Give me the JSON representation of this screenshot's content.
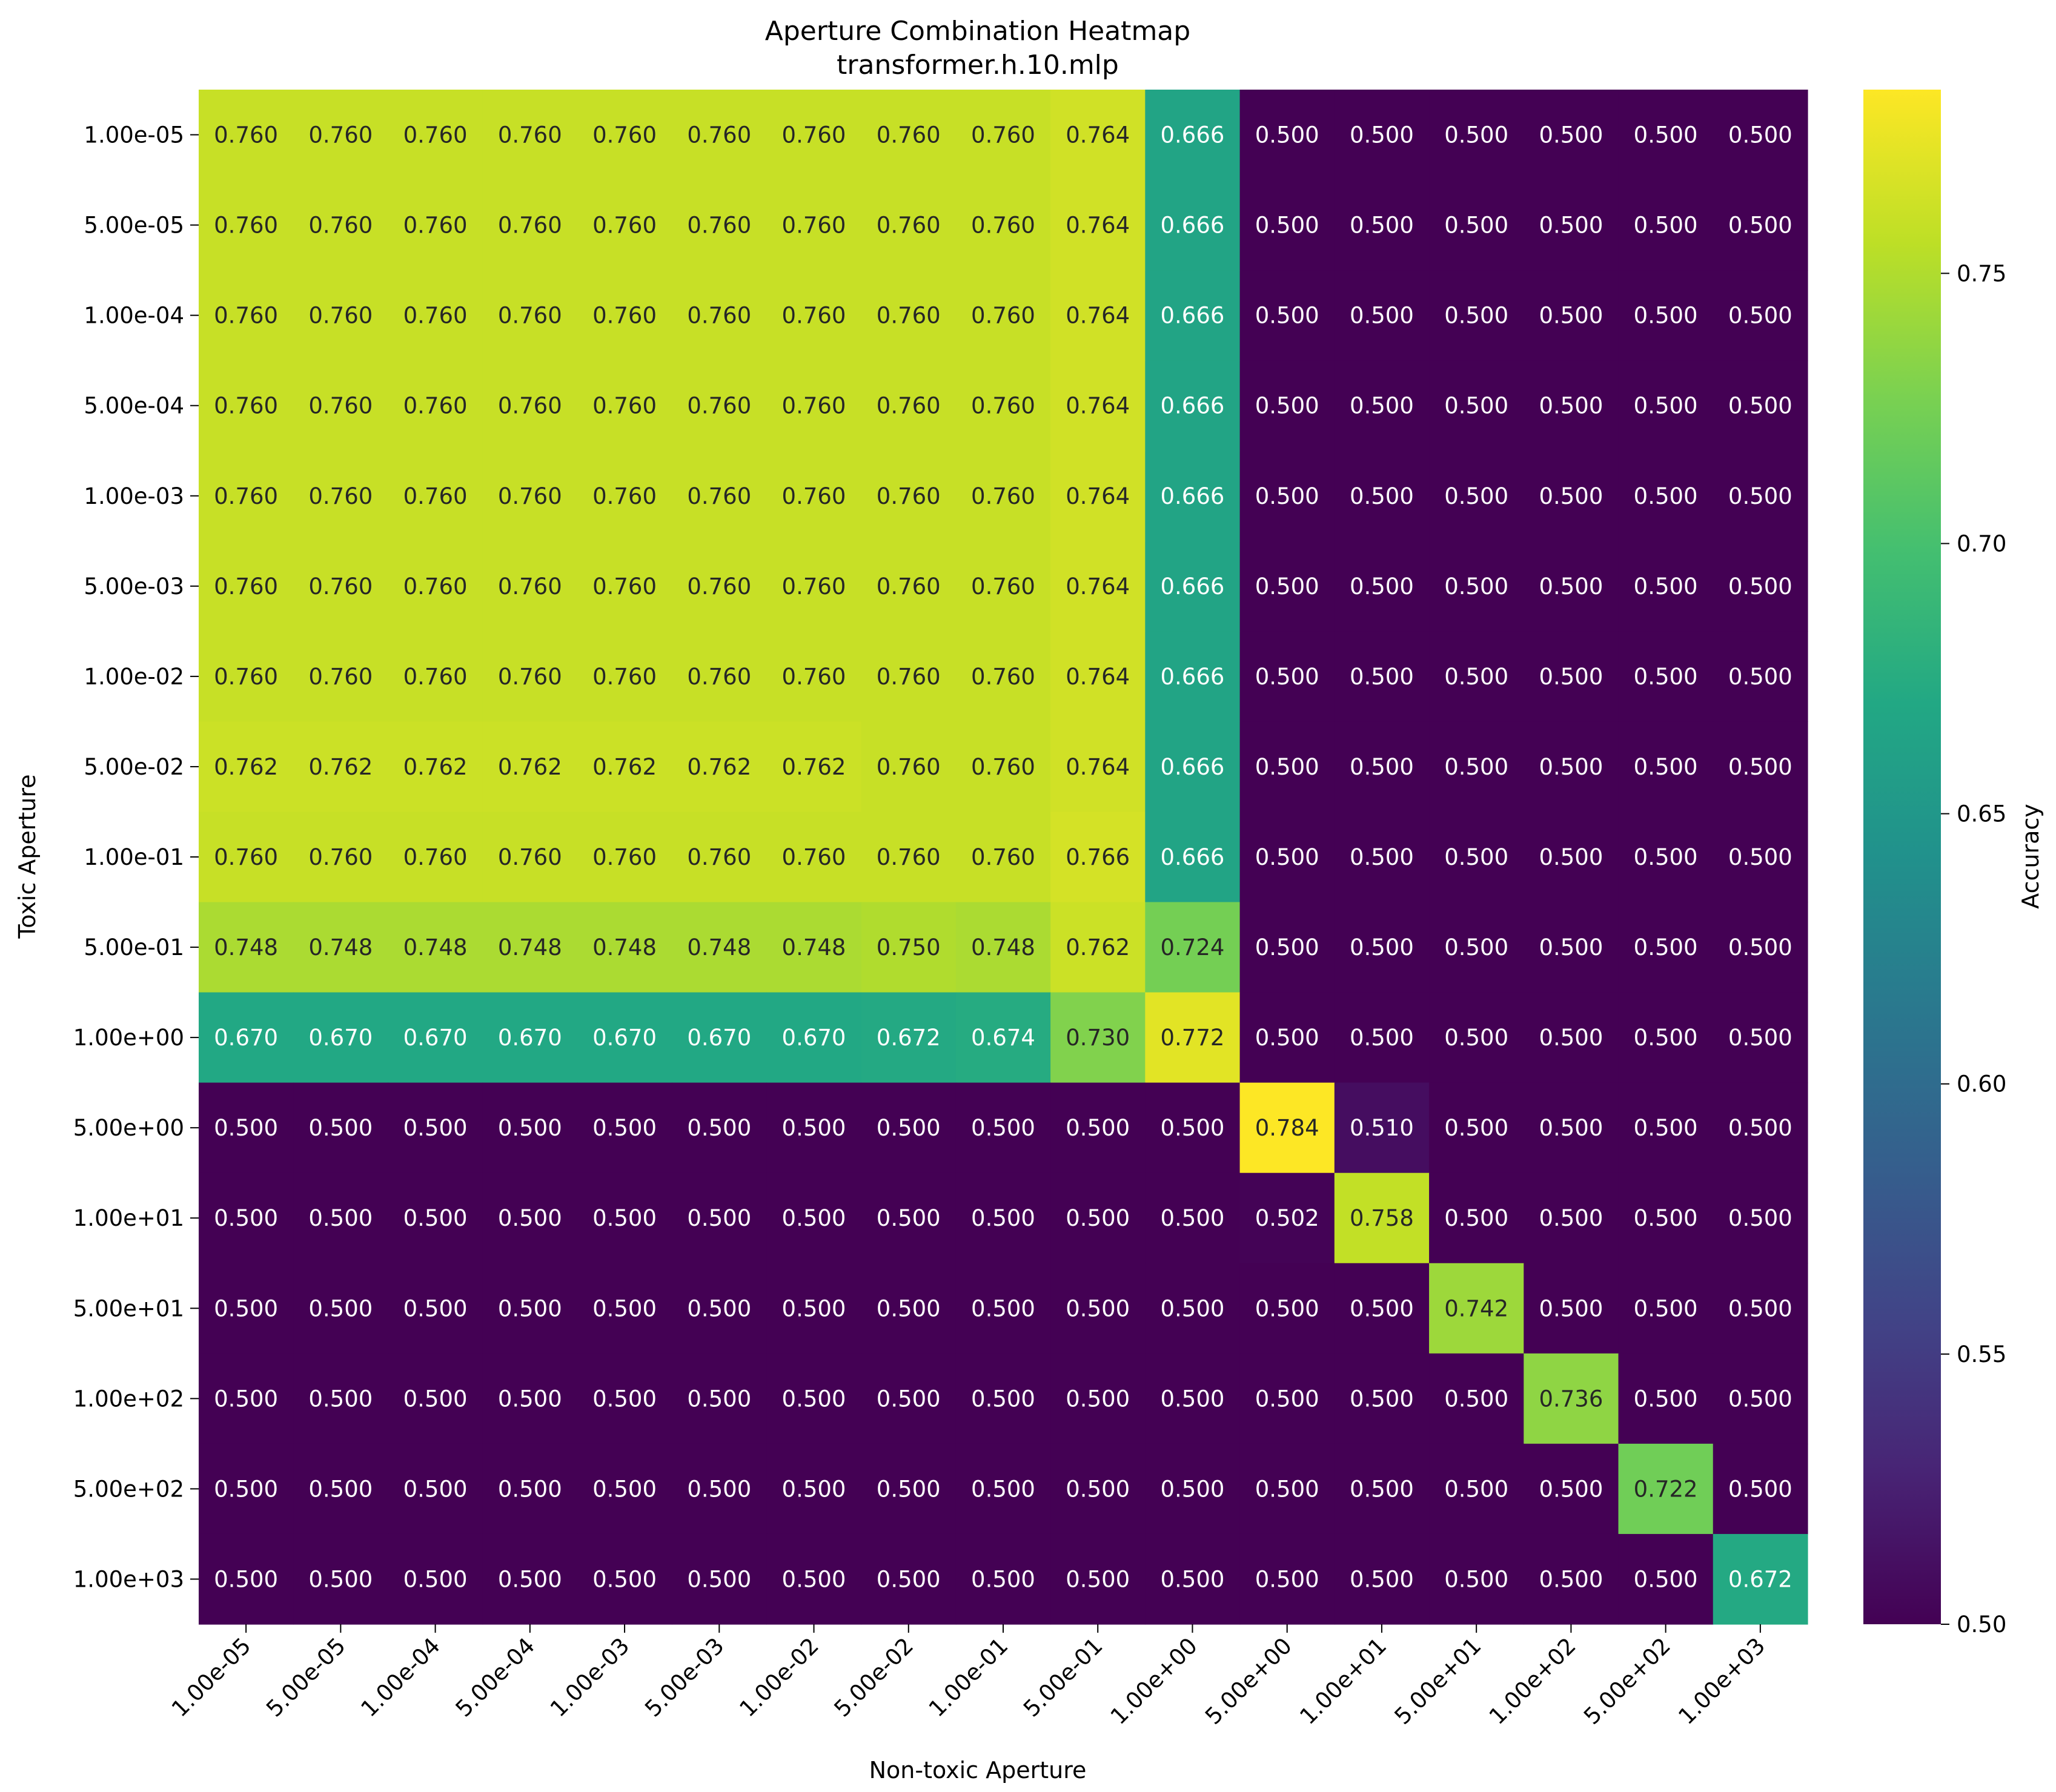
{
  "chart_data": {
    "type": "heatmap",
    "title": "Aperture Combination Heatmap",
    "subtitle": "transformer.h.10.mlp",
    "xlabel": "Non-toxic Aperture",
    "ylabel": "Toxic Aperture",
    "x": [
      "1.00e-05",
      "5.00e-05",
      "1.00e-04",
      "5.00e-04",
      "1.00e-03",
      "5.00e-03",
      "1.00e-02",
      "5.00e-02",
      "1.00e-01",
      "5.00e-01",
      "1.00e+00",
      "5.00e+00",
      "1.00e+01",
      "5.00e+01",
      "1.00e+02",
      "5.00e+02",
      "1.00e+03"
    ],
    "y": [
      "1.00e-05",
      "5.00e-05",
      "1.00e-04",
      "5.00e-04",
      "1.00e-03",
      "5.00e-03",
      "1.00e-02",
      "5.00e-02",
      "1.00e-01",
      "5.00e-01",
      "1.00e+00",
      "5.00e+00",
      "1.00e+01",
      "5.00e+01",
      "1.00e+02",
      "5.00e+02",
      "1.00e+03"
    ],
    "values": [
      [
        0.76,
        0.76,
        0.76,
        0.76,
        0.76,
        0.76,
        0.76,
        0.76,
        0.76,
        0.764,
        0.666,
        0.5,
        0.5,
        0.5,
        0.5,
        0.5,
        0.5
      ],
      [
        0.76,
        0.76,
        0.76,
        0.76,
        0.76,
        0.76,
        0.76,
        0.76,
        0.76,
        0.764,
        0.666,
        0.5,
        0.5,
        0.5,
        0.5,
        0.5,
        0.5
      ],
      [
        0.76,
        0.76,
        0.76,
        0.76,
        0.76,
        0.76,
        0.76,
        0.76,
        0.76,
        0.764,
        0.666,
        0.5,
        0.5,
        0.5,
        0.5,
        0.5,
        0.5
      ],
      [
        0.76,
        0.76,
        0.76,
        0.76,
        0.76,
        0.76,
        0.76,
        0.76,
        0.76,
        0.764,
        0.666,
        0.5,
        0.5,
        0.5,
        0.5,
        0.5,
        0.5
      ],
      [
        0.76,
        0.76,
        0.76,
        0.76,
        0.76,
        0.76,
        0.76,
        0.76,
        0.76,
        0.764,
        0.666,
        0.5,
        0.5,
        0.5,
        0.5,
        0.5,
        0.5
      ],
      [
        0.76,
        0.76,
        0.76,
        0.76,
        0.76,
        0.76,
        0.76,
        0.76,
        0.76,
        0.764,
        0.666,
        0.5,
        0.5,
        0.5,
        0.5,
        0.5,
        0.5
      ],
      [
        0.76,
        0.76,
        0.76,
        0.76,
        0.76,
        0.76,
        0.76,
        0.76,
        0.76,
        0.764,
        0.666,
        0.5,
        0.5,
        0.5,
        0.5,
        0.5,
        0.5
      ],
      [
        0.762,
        0.762,
        0.762,
        0.762,
        0.762,
        0.762,
        0.762,
        0.76,
        0.76,
        0.764,
        0.666,
        0.5,
        0.5,
        0.5,
        0.5,
        0.5,
        0.5
      ],
      [
        0.76,
        0.76,
        0.76,
        0.76,
        0.76,
        0.76,
        0.76,
        0.76,
        0.76,
        0.766,
        0.666,
        0.5,
        0.5,
        0.5,
        0.5,
        0.5,
        0.5
      ],
      [
        0.748,
        0.748,
        0.748,
        0.748,
        0.748,
        0.748,
        0.748,
        0.75,
        0.748,
        0.762,
        0.724,
        0.5,
        0.5,
        0.5,
        0.5,
        0.5,
        0.5
      ],
      [
        0.67,
        0.67,
        0.67,
        0.67,
        0.67,
        0.67,
        0.67,
        0.672,
        0.674,
        0.73,
        0.772,
        0.5,
        0.5,
        0.5,
        0.5,
        0.5,
        0.5
      ],
      [
        0.5,
        0.5,
        0.5,
        0.5,
        0.5,
        0.5,
        0.5,
        0.5,
        0.5,
        0.5,
        0.5,
        0.784,
        0.51,
        0.5,
        0.5,
        0.5,
        0.5
      ],
      [
        0.5,
        0.5,
        0.5,
        0.5,
        0.5,
        0.5,
        0.5,
        0.5,
        0.5,
        0.5,
        0.5,
        0.502,
        0.758,
        0.5,
        0.5,
        0.5,
        0.5
      ],
      [
        0.5,
        0.5,
        0.5,
        0.5,
        0.5,
        0.5,
        0.5,
        0.5,
        0.5,
        0.5,
        0.5,
        0.5,
        0.5,
        0.742,
        0.5,
        0.5,
        0.5
      ],
      [
        0.5,
        0.5,
        0.5,
        0.5,
        0.5,
        0.5,
        0.5,
        0.5,
        0.5,
        0.5,
        0.5,
        0.5,
        0.5,
        0.5,
        0.736,
        0.5,
        0.5
      ],
      [
        0.5,
        0.5,
        0.5,
        0.5,
        0.5,
        0.5,
        0.5,
        0.5,
        0.5,
        0.5,
        0.5,
        0.5,
        0.5,
        0.5,
        0.5,
        0.722,
        0.5
      ],
      [
        0.5,
        0.5,
        0.5,
        0.5,
        0.5,
        0.5,
        0.5,
        0.5,
        0.5,
        0.5,
        0.5,
        0.5,
        0.5,
        0.5,
        0.5,
        0.5,
        0.672
      ]
    ],
    "colorbar": {
      "label": "Accuracy",
      "range": [
        0.5,
        0.784
      ],
      "ticks": [
        0.5,
        0.55,
        0.6,
        0.65,
        0.7,
        0.75
      ],
      "tick_labels": [
        "0.50",
        "0.55",
        "0.60",
        "0.65",
        "0.70",
        "0.75"
      ],
      "colormap": "viridis"
    },
    "value_format": "3 decimals",
    "grid": false,
    "legend": "colorbar-right"
  }
}
